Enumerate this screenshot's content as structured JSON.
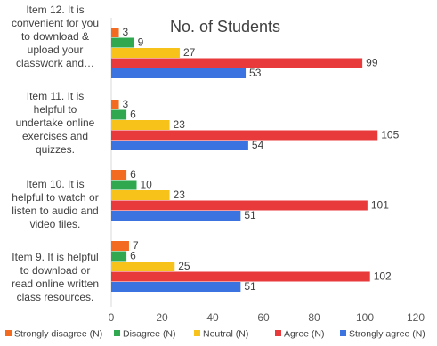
{
  "chart_data": {
    "type": "bar",
    "orientation": "horizontal",
    "title": "No. of Students",
    "categories": [
      "Item 12.  It is\nconvenient for you\nto download &\nupload your\nclasswork and…",
      "Item 11. It is\nhelpful to\nundertake online\nexercises and\nquizzes.",
      "Item 10. It is\nhelpful to watch or\nlisten to audio and\nvideo files.",
      "Item 9. It is helpful\nto download or\nread online written\nclass resources."
    ],
    "series": [
      {
        "name": "Strongly disagree (N)",
        "color": "#f26b21",
        "values": [
          3,
          3,
          6,
          7
        ]
      },
      {
        "name": "Disagree (N)",
        "color": "#2fa84f",
        "values": [
          9,
          6,
          10,
          6
        ]
      },
      {
        "name": "Neutral (N)",
        "color": "#f7c21a",
        "values": [
          27,
          23,
          23,
          25
        ]
      },
      {
        "name": "Agree (N)",
        "color": "#e8393b",
        "values": [
          99,
          105,
          101,
          102
        ]
      },
      {
        "name": "Strongly agree (N)",
        "color": "#3b74e0",
        "values": [
          53,
          54,
          51,
          51
        ]
      }
    ],
    "xlim": [
      0,
      120
    ],
    "xticks": [
      "0",
      "20",
      "40",
      "60",
      "80",
      "100",
      "120"
    ],
    "grid": false,
    "legend_position": "bottom"
  }
}
